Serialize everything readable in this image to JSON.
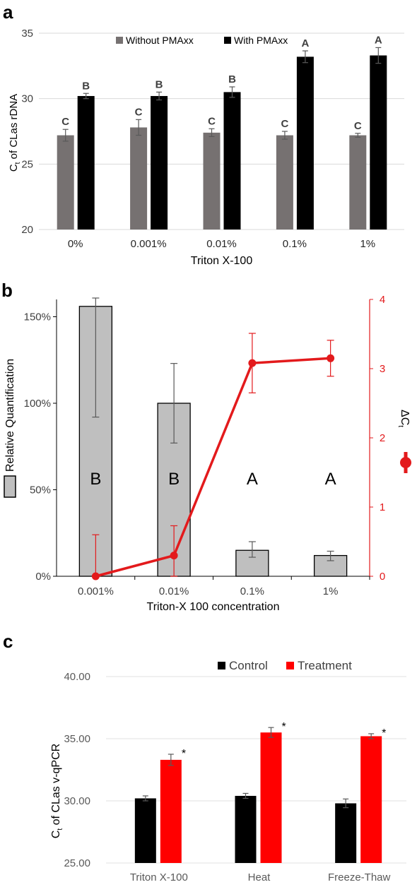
{
  "chart_data": [
    {
      "panel_label": "a",
      "type": "bar",
      "ylabel": "C",
      "ylabel_sub": "t",
      "ylabel_rest": " of CLas rDNA",
      "xlabel": "Triton X-100",
      "ylim": [
        20,
        35
      ],
      "yticks": [
        "20",
        "25",
        "30",
        "35"
      ],
      "categories": [
        "0%",
        "0.001%",
        "0.01%",
        "0.1%",
        "1%"
      ],
      "legend_position": "top",
      "series": [
        {
          "name": "Without PMAxx",
          "color": "#767171",
          "values": [
            27.2,
            27.8,
            27.4,
            27.2,
            27.2
          ],
          "errors": [
            0.45,
            0.6,
            0.3,
            0.3,
            0.15
          ],
          "letters": [
            "C",
            "C",
            "C",
            "C",
            "C"
          ]
        },
        {
          "name": "With PMAxx",
          "color": "#000000",
          "values": [
            30.2,
            30.2,
            30.5,
            33.2,
            33.3
          ],
          "errors": [
            0.2,
            0.3,
            0.4,
            0.45,
            0.6
          ],
          "letters": [
            "B",
            "B",
            "B",
            "A",
            "A"
          ]
        }
      ]
    },
    {
      "panel_label": "b",
      "type": "bar+line",
      "xlabel": "Triton-X 100 concentration",
      "categories": [
        "0.001%",
        "0.01%",
        "0.1%",
        "1%"
      ],
      "left_axis": {
        "label": "Relative Quantification",
        "ylim": [
          0,
          160
        ],
        "ticks": [
          0,
          50,
          100,
          150
        ],
        "tick_labels": [
          "0%",
          "50%",
          "100%",
          "150%"
        ]
      },
      "right_axis": {
        "label": "ΔC",
        "label_sub": "t",
        "ylim": [
          0,
          4
        ],
        "ticks": [
          0,
          1,
          2,
          3,
          4
        ],
        "tick_labels": [
          "0",
          "1",
          "2",
          "3",
          "4"
        ],
        "color": "#e31a1c"
      },
      "bars": {
        "name": "Relative Quantification",
        "values": [
          156,
          100,
          15,
          12
        ],
        "err_low": [
          64,
          23,
          4,
          3
        ],
        "err_high": [
          10,
          23,
          5,
          2.5
        ],
        "letters": [
          "B",
          "B",
          "A",
          "A"
        ],
        "color": "#bfbfbf"
      },
      "line": {
        "name": "ΔCt",
        "values": [
          0.0,
          0.3,
          3.08,
          3.15
        ],
        "errors": [
          0.6,
          0.43,
          0.43,
          0.26
        ],
        "color": "#e31a1c"
      }
    },
    {
      "panel_label": "c",
      "type": "bar",
      "ylabel": "C",
      "ylabel_sub": "t",
      "ylabel_rest": " of CLas v-qPCR",
      "ylim": [
        25,
        40
      ],
      "yticks": [
        "25.00",
        "30.00",
        "35.00",
        "40.00"
      ],
      "categories": [
        "Triton X-100",
        "Heat",
        "Freeze-Thaw"
      ],
      "legend_position": "top-right",
      "series": [
        {
          "name": "Control",
          "color": "#000000",
          "values": [
            30.2,
            30.4,
            29.8
          ],
          "errors": [
            0.2,
            0.2,
            0.35
          ],
          "marks": [
            "",
            "",
            ""
          ]
        },
        {
          "name": "Treatment",
          "color": "#ff0000",
          "values": [
            33.3,
            35.5,
            35.2
          ],
          "errors": [
            0.45,
            0.4,
            0.2
          ],
          "marks": [
            "*",
            "*",
            "*"
          ]
        }
      ]
    }
  ]
}
